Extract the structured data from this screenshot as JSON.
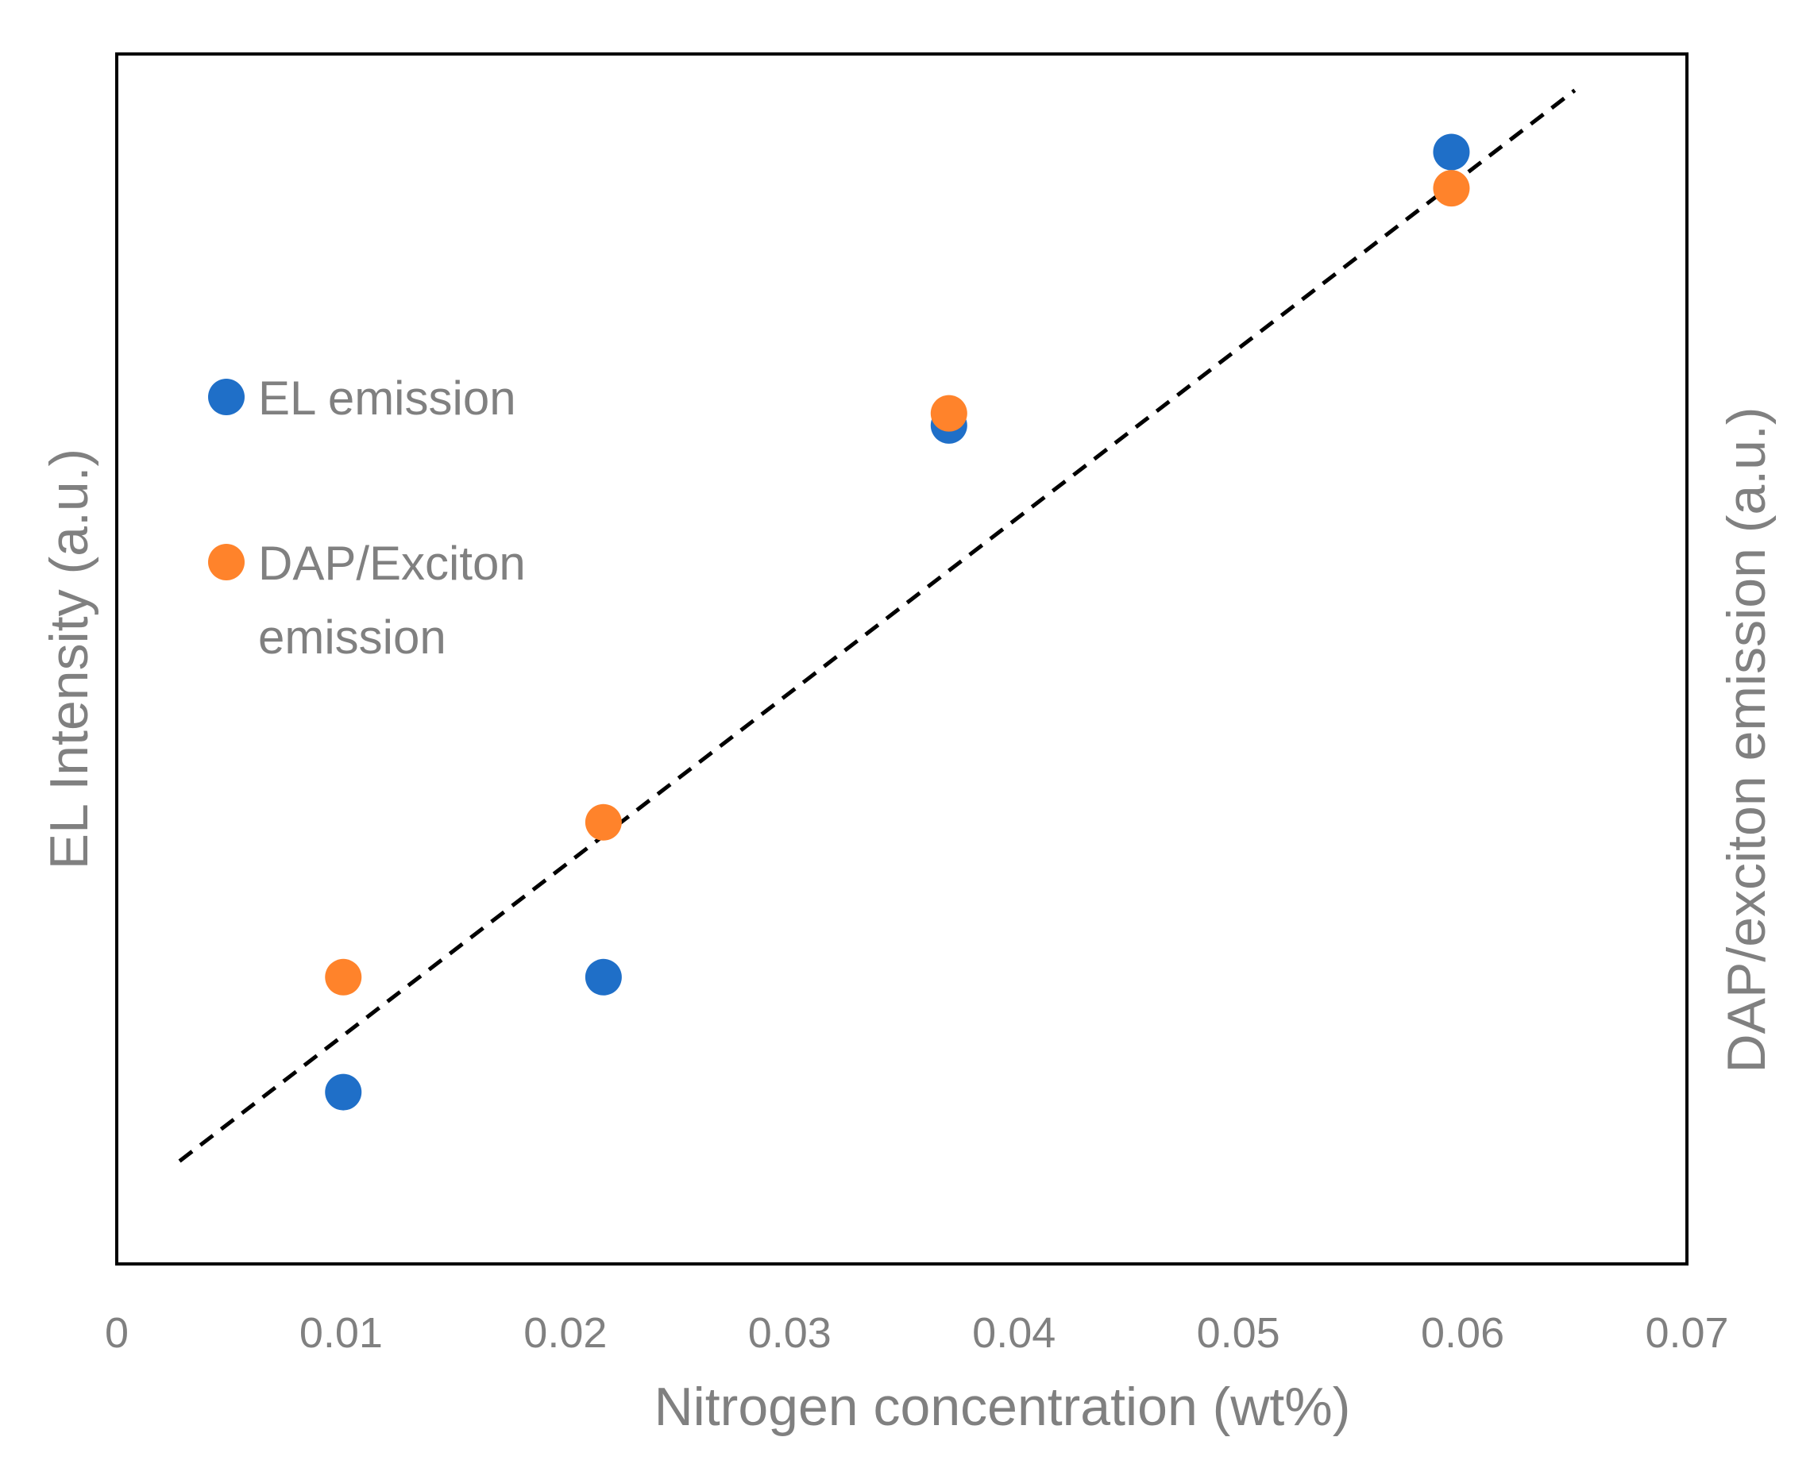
{
  "chart_data": {
    "type": "scatter",
    "title": "",
    "xlabel": "Nitrogen concentration (wt%)",
    "ylabel": "EL Intensity (a.u.)",
    "y2label": "DAP/exciton emission (a.u.)",
    "xlim": [
      0,
      0.07
    ],
    "ylim": [
      0,
      1
    ],
    "xticks": [
      "0",
      "0.01",
      "0.02",
      "0.03",
      "0.04",
      "0.05",
      "0.06",
      "0.07"
    ],
    "grid": false,
    "legend_position": "left-middle",
    "series": [
      {
        "name": "EL emission",
        "color": "#1F6FC8",
        "x": [
          0.0101,
          0.0217,
          0.0371,
          0.0595
        ],
        "y": [
          0.142,
          0.237,
          0.693,
          0.919
        ]
      },
      {
        "name": "DAP/Exciton emission",
        "name_lines": [
          "DAP/Exciton",
          "emission"
        ],
        "color": "#FF832B",
        "x": [
          0.0101,
          0.0217,
          0.0371,
          0.0595
        ],
        "y": [
          0.237,
          0.365,
          0.703,
          0.889
        ]
      }
    ],
    "trendline": {
      "style": "dashed",
      "color": "#000000",
      "x": [
        0.0028,
        0.065
      ],
      "y": [
        0.085,
        0.97
      ]
    }
  }
}
